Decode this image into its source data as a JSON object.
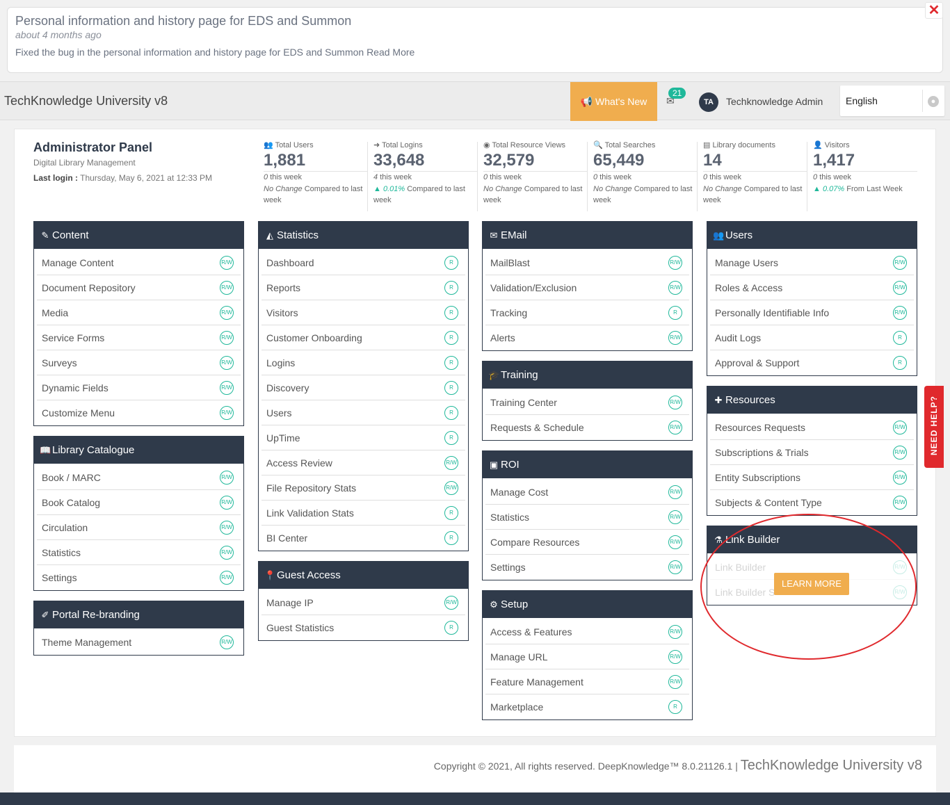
{
  "notification": {
    "title": "Personal information and history page for EDS and Summon",
    "time": "about 4 months ago",
    "body": "Fixed the bug in the personal information and history page for EDS and Summon Read More",
    "close_icon": "close-icon"
  },
  "header": {
    "title": "TechKnowledge University v8",
    "whats_new": "What's New",
    "mail_count": "21",
    "avatar_initials": "TA",
    "user": "Techknowledge Admin",
    "language": "English"
  },
  "admin": {
    "title": "Administrator Panel",
    "subtitle": "Digital Library Management",
    "last_login_label": "Last login :",
    "last_login_value": "Thursday, May 6, 2021 at 12:33 PM"
  },
  "stats": [
    {
      "label": "Total Users",
      "value": "1,881",
      "week_num": "0",
      "week_text": "this week",
      "cmp_main": "No Change",
      "cmp_rest": "Compared to last week",
      "icon": "users-icon"
    },
    {
      "label": "Total Logins",
      "value": "33,648",
      "week_num": "4",
      "week_text": "this week",
      "cmp_main": "0.01%",
      "cmp_rest": "Compared to last week",
      "icon": "login-icon"
    },
    {
      "label": "Total Resource Views",
      "value": "32,579",
      "week_num": "0",
      "week_text": "this week",
      "cmp_main": "No Change",
      "cmp_rest": "Compared to last week",
      "icon": "eye-icon"
    },
    {
      "label": "Total Searches",
      "value": "65,449",
      "week_num": "0",
      "week_text": "this week",
      "cmp_main": "No Change",
      "cmp_rest": "Compared to last week",
      "icon": "search-icon"
    },
    {
      "label": "Library documents",
      "value": "14",
      "week_num": "0",
      "week_text": "this week",
      "cmp_main": "No Change",
      "cmp_rest": "Compared to last week",
      "icon": "book-icon"
    },
    {
      "label": "Visitors",
      "value": "1,417",
      "week_num": "0",
      "week_text": "this week",
      "cmp_main": "0.07%",
      "cmp_rest": "From Last Week",
      "icon": "visitors-icon"
    }
  ],
  "cards": {
    "content": {
      "title": "Content",
      "items": [
        {
          "label": "Manage Content",
          "perm": "R/W"
        },
        {
          "label": "Document Repository",
          "perm": "R/W"
        },
        {
          "label": "Media",
          "perm": "R/W"
        },
        {
          "label": "Service Forms",
          "perm": "R/W"
        },
        {
          "label": "Surveys",
          "perm": "R/W"
        },
        {
          "label": "Dynamic Fields",
          "perm": "R/W"
        },
        {
          "label": "Customize Menu",
          "perm": "R/W"
        }
      ]
    },
    "library": {
      "title": "Library Catalogue",
      "items": [
        {
          "label": "Book / MARC",
          "perm": "R/W"
        },
        {
          "label": "Book Catalog",
          "perm": "R/W"
        },
        {
          "label": "Circulation",
          "perm": "R/W"
        },
        {
          "label": "Statistics",
          "perm": "R/W"
        },
        {
          "label": "Settings",
          "perm": "R/W"
        }
      ]
    },
    "portal": {
      "title": "Portal Re-branding",
      "items": [
        {
          "label": "Theme Management",
          "perm": "R/W"
        }
      ]
    },
    "statistics": {
      "title": "Statistics",
      "items": [
        {
          "label": "Dashboard",
          "perm": "R"
        },
        {
          "label": "Reports",
          "perm": "R"
        },
        {
          "label": "Visitors",
          "perm": "R"
        },
        {
          "label": "Customer Onboarding",
          "perm": "R"
        },
        {
          "label": "Logins",
          "perm": "R"
        },
        {
          "label": "Discovery",
          "perm": "R"
        },
        {
          "label": "Users",
          "perm": "R"
        },
        {
          "label": "UpTime",
          "perm": "R"
        },
        {
          "label": "Access Review",
          "perm": "R/W"
        },
        {
          "label": "File Repository Stats",
          "perm": "R/W"
        },
        {
          "label": "Link Validation Stats",
          "perm": "R"
        },
        {
          "label": "BI Center",
          "perm": "R"
        }
      ]
    },
    "guest": {
      "title": "Guest Access",
      "items": [
        {
          "label": "Manage IP",
          "perm": "R/W"
        },
        {
          "label": "Guest Statistics",
          "perm": "R"
        }
      ]
    },
    "email": {
      "title": "EMail",
      "items": [
        {
          "label": "MailBlast",
          "perm": "R/W"
        },
        {
          "label": "Validation/Exclusion",
          "perm": "R/W"
        },
        {
          "label": "Tracking",
          "perm": "R"
        },
        {
          "label": "Alerts",
          "perm": "R/W"
        }
      ]
    },
    "training": {
      "title": "Training",
      "items": [
        {
          "label": "Training Center",
          "perm": "R/W"
        },
        {
          "label": "Requests & Schedule",
          "perm": "R/W"
        }
      ]
    },
    "roi": {
      "title": "ROI",
      "items": [
        {
          "label": "Manage Cost",
          "perm": "R/W"
        },
        {
          "label": "Statistics",
          "perm": "R/W"
        },
        {
          "label": "Compare Resources",
          "perm": "R/W"
        },
        {
          "label": "Settings",
          "perm": "R/W"
        }
      ]
    },
    "setup": {
      "title": "Setup",
      "items": [
        {
          "label": "Access & Features",
          "perm": "R/W"
        },
        {
          "label": "Manage URL",
          "perm": "R/W"
        },
        {
          "label": "Feature Management",
          "perm": "R/W"
        },
        {
          "label": "Marketplace",
          "perm": "R"
        }
      ]
    },
    "users": {
      "title": "Users",
      "items": [
        {
          "label": "Manage Users",
          "perm": "R/W"
        },
        {
          "label": "Roles & Access",
          "perm": "R/W"
        },
        {
          "label": "Personally Identifiable Info",
          "perm": "R/W"
        },
        {
          "label": "Audit Logs",
          "perm": "R"
        },
        {
          "label": "Approval & Support",
          "perm": "R"
        }
      ]
    },
    "resources": {
      "title": "Resources",
      "items": [
        {
          "label": "Resources Requests",
          "perm": "R/W"
        },
        {
          "label": "Subscriptions & Trials",
          "perm": "R/W"
        },
        {
          "label": "Entity Subscriptions",
          "perm": "R/W"
        },
        {
          "label": "Subjects & Content Type",
          "perm": "R/W"
        }
      ]
    },
    "linkbuilder": {
      "title": "Link Builder",
      "items": [
        {
          "label": "Link Builder",
          "perm": "R/W"
        },
        {
          "label": "Link Builder S",
          "perm": "R/W"
        }
      ]
    }
  },
  "learn_more": "LEARN MORE",
  "need_help": "NEED HELP?",
  "footer": {
    "copyright": "Copyright © 2021, All rights reserved. DeepKnowledge™ 8.0.21126.1 |",
    "brand": "TechKnowledge University v8"
  },
  "colors": {
    "navy": "#2f3a4a",
    "orange": "#f0ad4e",
    "teal": "#1fb89a",
    "red": "#e0292d"
  }
}
